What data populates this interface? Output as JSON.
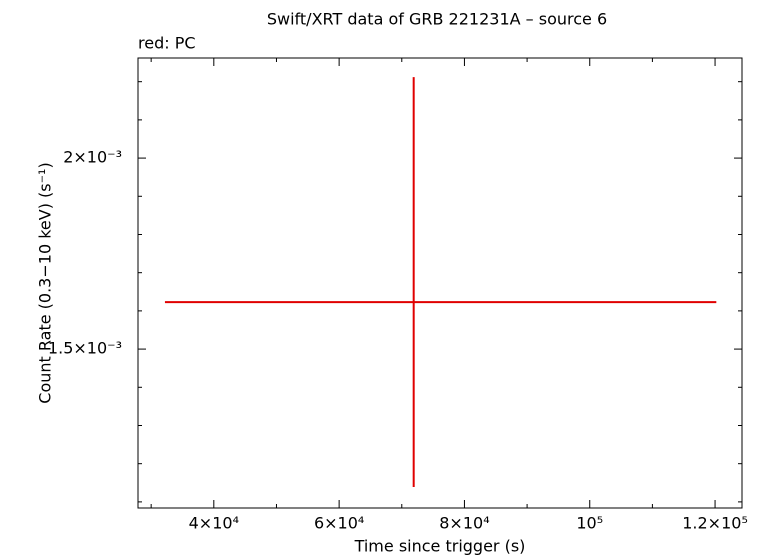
{
  "chart_data": {
    "type": "errorbar",
    "title": "Swift/XRT data of GRB 221231A – source 6",
    "subtitle": "red: PC",
    "x_label": "Time since trigger (s)",
    "y_label": "Count Rate (0.3−10 keV) (s⁻¹)",
    "xlim": [
      27900,
      124300
    ],
    "ylim": [
      0.001084,
      0.002262
    ],
    "xticks": [
      {
        "value": 40000,
        "label": "4×10⁴"
      },
      {
        "value": 60000,
        "label": "6×10⁴"
      },
      {
        "value": 80000,
        "label": "8×10⁴"
      },
      {
        "value": 100000,
        "label": "10⁵"
      },
      {
        "value": 120000,
        "label": "1.2×10⁵"
      }
    ],
    "yticks": [
      {
        "value": 0.0015,
        "label": "1.5×10⁻³"
      },
      {
        "value": 0.002,
        "label": "2×10⁻³"
      }
    ],
    "xminorticks": [
      30000,
      50000,
      70000,
      90000,
      110000
    ],
    "yminorticks": [
      0.0011,
      0.0012,
      0.0013,
      0.0014,
      0.0016,
      0.0017,
      0.0018,
      0.0019,
      0.0021,
      0.0022
    ],
    "series": [
      {
        "name": "PC",
        "color": "#e00000",
        "x": [
          71900
        ],
        "xerr_minus": [
          39700
        ],
        "xerr_plus": [
          48300
        ],
        "values": [
          0.001623
        ],
        "yerr_minus": [
          0.000484
        ],
        "yerr_plus": [
          0.000589
        ]
      }
    ]
  }
}
